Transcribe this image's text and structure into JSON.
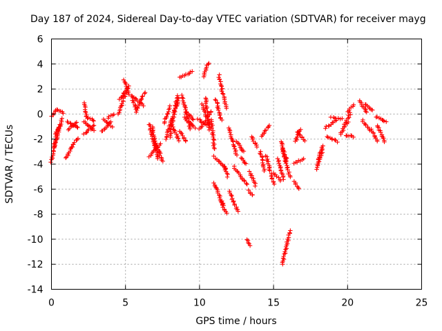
{
  "chart_data": {
    "type": "scatter",
    "title": "Day 187 of 2024, Sidereal Day-to-day VTEC variation (SDTVAR) for receiver mayg",
    "xlabel": "GPS time / hours",
    "ylabel": "SDTVAR / TECUs",
    "xlim": [
      0,
      25
    ],
    "ylim": [
      -14,
      6
    ],
    "grid": true,
    "marker": "+",
    "marker_color": "#ff0000",
    "xticks": [
      0,
      5,
      10,
      15,
      20,
      25
    ],
    "xtick_labels": [
      "0",
      "5",
      "10",
      "15",
      "20",
      "25"
    ],
    "yticks": [
      -14,
      -12,
      -10,
      -8,
      -6,
      -4,
      -2,
      0,
      2,
      4,
      6
    ],
    "ytick_labels": [
      "-14",
      "-12",
      "-10",
      "-8",
      "-6",
      "-4",
      "-2",
      "0",
      "2",
      "4",
      "6"
    ],
    "segments": [
      {
        "x": [
          0.0,
          0.4
        ],
        "y": [
          -3.8,
          -1.2
        ]
      },
      {
        "x": [
          0.05,
          0.35
        ],
        "y": [
          -0.2,
          0.4
        ]
      },
      {
        "x": [
          0.2,
          0.6
        ],
        "y": [
          -2.6,
          -0.8
        ]
      },
      {
        "x": [
          0.3,
          0.75
        ],
        "y": [
          -1.6,
          -0.4
        ]
      },
      {
        "x": [
          0.4,
          0.8
        ],
        "y": [
          0.3,
          0.1
        ]
      },
      {
        "x": [
          1.0,
          1.4
        ],
        "y": [
          -3.5,
          -2.6
        ]
      },
      {
        "x": [
          1.4,
          1.75
        ],
        "y": [
          -2.6,
          -1.9
        ]
      },
      {
        "x": [
          1.05,
          1.8
        ],
        "y": [
          -0.6,
          -1.1
        ]
      },
      {
        "x": [
          1.1,
          1.7
        ],
        "y": [
          -1.2,
          -0.7
        ]
      },
      {
        "x": [
          2.2,
          2.4
        ],
        "y": [
          0.9,
          -0.3
        ]
      },
      {
        "x": [
          2.15,
          2.9
        ],
        "y": [
          -0.6,
          -1.3
        ]
      },
      {
        "x": [
          2.2,
          2.9
        ],
        "y": [
          -1.6,
          -0.9
        ]
      },
      {
        "x": [
          2.4,
          2.9
        ],
        "y": [
          -0.2,
          -0.6
        ]
      },
      {
        "x": [
          3.4,
          4.0
        ],
        "y": [
          -1.4,
          -0.6
        ]
      },
      {
        "x": [
          3.5,
          4.1
        ],
        "y": [
          -0.4,
          -1.0
        ]
      },
      {
        "x": [
          3.8,
          4.2
        ],
        "y": [
          -0.3,
          0.0
        ]
      },
      {
        "x": [
          4.5,
          5.2
        ],
        "y": [
          0.0,
          2.2
        ]
      },
      {
        "x": [
          4.6,
          5.0
        ],
        "y": [
          1.2,
          1.8
        ]
      },
      {
        "x": [
          4.9,
          5.2
        ],
        "y": [
          2.7,
          1.6
        ]
      },
      {
        "x": [
          5.4,
          5.7
        ],
        "y": [
          1.5,
          0.4
        ]
      },
      {
        "x": [
          5.6,
          6.2
        ],
        "y": [
          1.3,
          0.7
        ]
      },
      {
        "x": [
          5.7,
          6.3
        ],
        "y": [
          0.2,
          1.7
        ]
      },
      {
        "x": [
          6.6,
          7.0
        ],
        "y": [
          -0.8,
          -2.8
        ]
      },
      {
        "x": [
          6.8,
          7.2
        ],
        "y": [
          -1.0,
          -3.6
        ]
      },
      {
        "x": [
          6.6,
          7.4
        ],
        "y": [
          -3.4,
          -2.4
        ]
      },
      {
        "x": [
          7.0,
          7.5
        ],
        "y": [
          -2.2,
          -3.8
        ]
      },
      {
        "x": [
          7.6,
          8.0
        ],
        "y": [
          -0.7,
          0.6
        ]
      },
      {
        "x": [
          7.7,
          8.2
        ],
        "y": [
          -2.0,
          -0.2
        ]
      },
      {
        "x": [
          8.0,
          8.5
        ],
        "y": [
          -1.8,
          1.5
        ]
      },
      {
        "x": [
          8.1,
          8.6
        ],
        "y": [
          -0.8,
          -2.1
        ]
      },
      {
        "x": [
          8.3,
          8.6
        ],
        "y": [
          0.2,
          1.2
        ]
      },
      {
        "x": [
          8.7,
          9.5
        ],
        "y": [
          2.9,
          3.4
        ]
      },
      {
        "x": [
          8.8,
          9.4
        ],
        "y": [
          1.5,
          -1.2
        ]
      },
      {
        "x": [
          8.7,
          9.1
        ],
        "y": [
          -1.4,
          -2.2
        ]
      },
      {
        "x": [
          9.0,
          9.7
        ],
        "y": [
          -0.3,
          -1.1
        ]
      },
      {
        "x": [
          9.1,
          9.6
        ],
        "y": [
          0.2,
          -0.5
        ]
      },
      {
        "x": [
          9.9,
          10.5
        ],
        "y": [
          -0.4,
          -0.9
        ]
      },
      {
        "x": [
          10.0,
          10.4
        ],
        "y": [
          -1.2,
          -0.5
        ]
      },
      {
        "x": [
          10.3,
          10.6
        ],
        "y": [
          3.0,
          4.1
        ]
      },
      {
        "x": [
          10.4,
          10.7
        ],
        "y": [
          1.3,
          -1.3
        ]
      },
      {
        "x": [
          10.2,
          10.6
        ],
        "y": [
          0.8,
          -0.8
        ]
      },
      {
        "x": [
          10.5,
          10.8
        ],
        "y": [
          -0.2,
          0.2
        ]
      },
      {
        "x": [
          10.8,
          11.0
        ],
        "y": [
          -0.5,
          -2.8
        ]
      },
      {
        "x": [
          11.0,
          11.8
        ],
        "y": [
          -3.4,
          -4.4
        ]
      },
      {
        "x": [
          11.1,
          11.5
        ],
        "y": [
          1.2,
          -0.5
        ]
      },
      {
        "x": [
          11.3,
          11.8
        ],
        "y": [
          3.1,
          0.5
        ]
      },
      {
        "x": [
          11.0,
          11.6
        ],
        "y": [
          -5.5,
          -7.3
        ]
      },
      {
        "x": [
          11.4,
          11.8
        ],
        "y": [
          -7.0,
          -7.9
        ]
      },
      {
        "x": [
          11.7,
          11.9
        ],
        "y": [
          -4.2,
          -5.0
        ]
      },
      {
        "x": [
          12.0,
          12.5
        ],
        "y": [
          -1.1,
          -3.3
        ]
      },
      {
        "x": [
          12.3,
          13.2
        ],
        "y": [
          -4.2,
          -5.6
        ]
      },
      {
        "x": [
          12.0,
          12.6
        ],
        "y": [
          -6.2,
          -7.8
        ]
      },
      {
        "x": [
          12.5,
          13.0
        ],
        "y": [
          -2.2,
          -3.0
        ]
      },
      {
        "x": [
          12.8,
          13.1
        ],
        "y": [
          -3.5,
          -4.0
        ]
      },
      {
        "x": [
          13.2,
          13.4
        ],
        "y": [
          -10.0,
          -10.5
        ]
      },
      {
        "x": [
          13.3,
          13.6
        ],
        "y": [
          -6.1,
          -6.5
        ]
      },
      {
        "x": [
          13.4,
          13.8
        ],
        "y": [
          -4.6,
          -5.7
        ]
      },
      {
        "x": [
          13.5,
          13.9
        ],
        "y": [
          -1.8,
          -2.6
        ]
      },
      {
        "x": [
          14.1,
          14.4
        ],
        "y": [
          -3.0,
          -4.5
        ]
      },
      {
        "x": [
          14.2,
          14.7
        ],
        "y": [
          -1.8,
          -0.9
        ]
      },
      {
        "x": [
          14.5,
          15.0
        ],
        "y": [
          -3.3,
          -5.6
        ]
      },
      {
        "x": [
          15.0,
          15.5
        ],
        "y": [
          -4.7,
          -5.3
        ]
      },
      {
        "x": [
          15.3,
          15.7
        ],
        "y": [
          -3.6,
          -5.2
        ]
      },
      {
        "x": [
          15.6,
          16.1
        ],
        "y": [
          -2.8,
          -5.0
        ]
      },
      {
        "x": [
          15.5,
          15.9
        ],
        "y": [
          -2.2,
          -3.8
        ]
      },
      {
        "x": [
          15.6,
          16.1
        ],
        "y": [
          -12.0,
          -9.3
        ]
      },
      {
        "x": [
          16.5,
          16.8
        ],
        "y": [
          -2.2,
          -1.2
        ]
      },
      {
        "x": [
          16.4,
          16.7
        ],
        "y": [
          -5.4,
          -6.0
        ]
      },
      {
        "x": [
          16.4,
          17.0
        ],
        "y": [
          -3.9,
          -3.6
        ]
      },
      {
        "x": [
          16.6,
          17.1
        ],
        "y": [
          -1.4,
          -2.1
        ]
      },
      {
        "x": [
          17.9,
          18.3
        ],
        "y": [
          -4.4,
          -2.9
        ]
      },
      {
        "x": [
          18.0,
          18.3
        ],
        "y": [
          -3.8,
          -2.5
        ]
      },
      {
        "x": [
          18.5,
          19.2
        ],
        "y": [
          -1.1,
          -0.5
        ]
      },
      {
        "x": [
          18.6,
          19.3
        ],
        "y": [
          -1.8,
          -2.2
        ]
      },
      {
        "x": [
          18.9,
          19.6
        ],
        "y": [
          -0.3,
          -0.4
        ]
      },
      {
        "x": [
          19.5,
          20.0
        ],
        "y": [
          -1.6,
          -0.6
        ]
      },
      {
        "x": [
          19.8,
          20.2
        ],
        "y": [
          -0.8,
          0.1
        ]
      },
      {
        "x": [
          20.0,
          20.4
        ],
        "y": [
          0.2,
          0.7
        ]
      },
      {
        "x": [
          19.9,
          20.4
        ],
        "y": [
          -1.7,
          -1.8
        ]
      },
      {
        "x": [
          20.8,
          21.3
        ],
        "y": [
          1.1,
          0.1
        ]
      },
      {
        "x": [
          21.0,
          21.5
        ],
        "y": [
          -0.5,
          -1.3
        ]
      },
      {
        "x": [
          21.2,
          21.7
        ],
        "y": [
          0.8,
          0.3
        ]
      },
      {
        "x": [
          21.6,
          22.0
        ],
        "y": [
          -1.2,
          -2.2
        ]
      },
      {
        "x": [
          21.9,
          22.6
        ],
        "y": [
          -0.2,
          -0.6
        ]
      },
      {
        "x": [
          22.0,
          22.5
        ],
        "y": [
          -0.9,
          -2.2
        ]
      }
    ]
  }
}
